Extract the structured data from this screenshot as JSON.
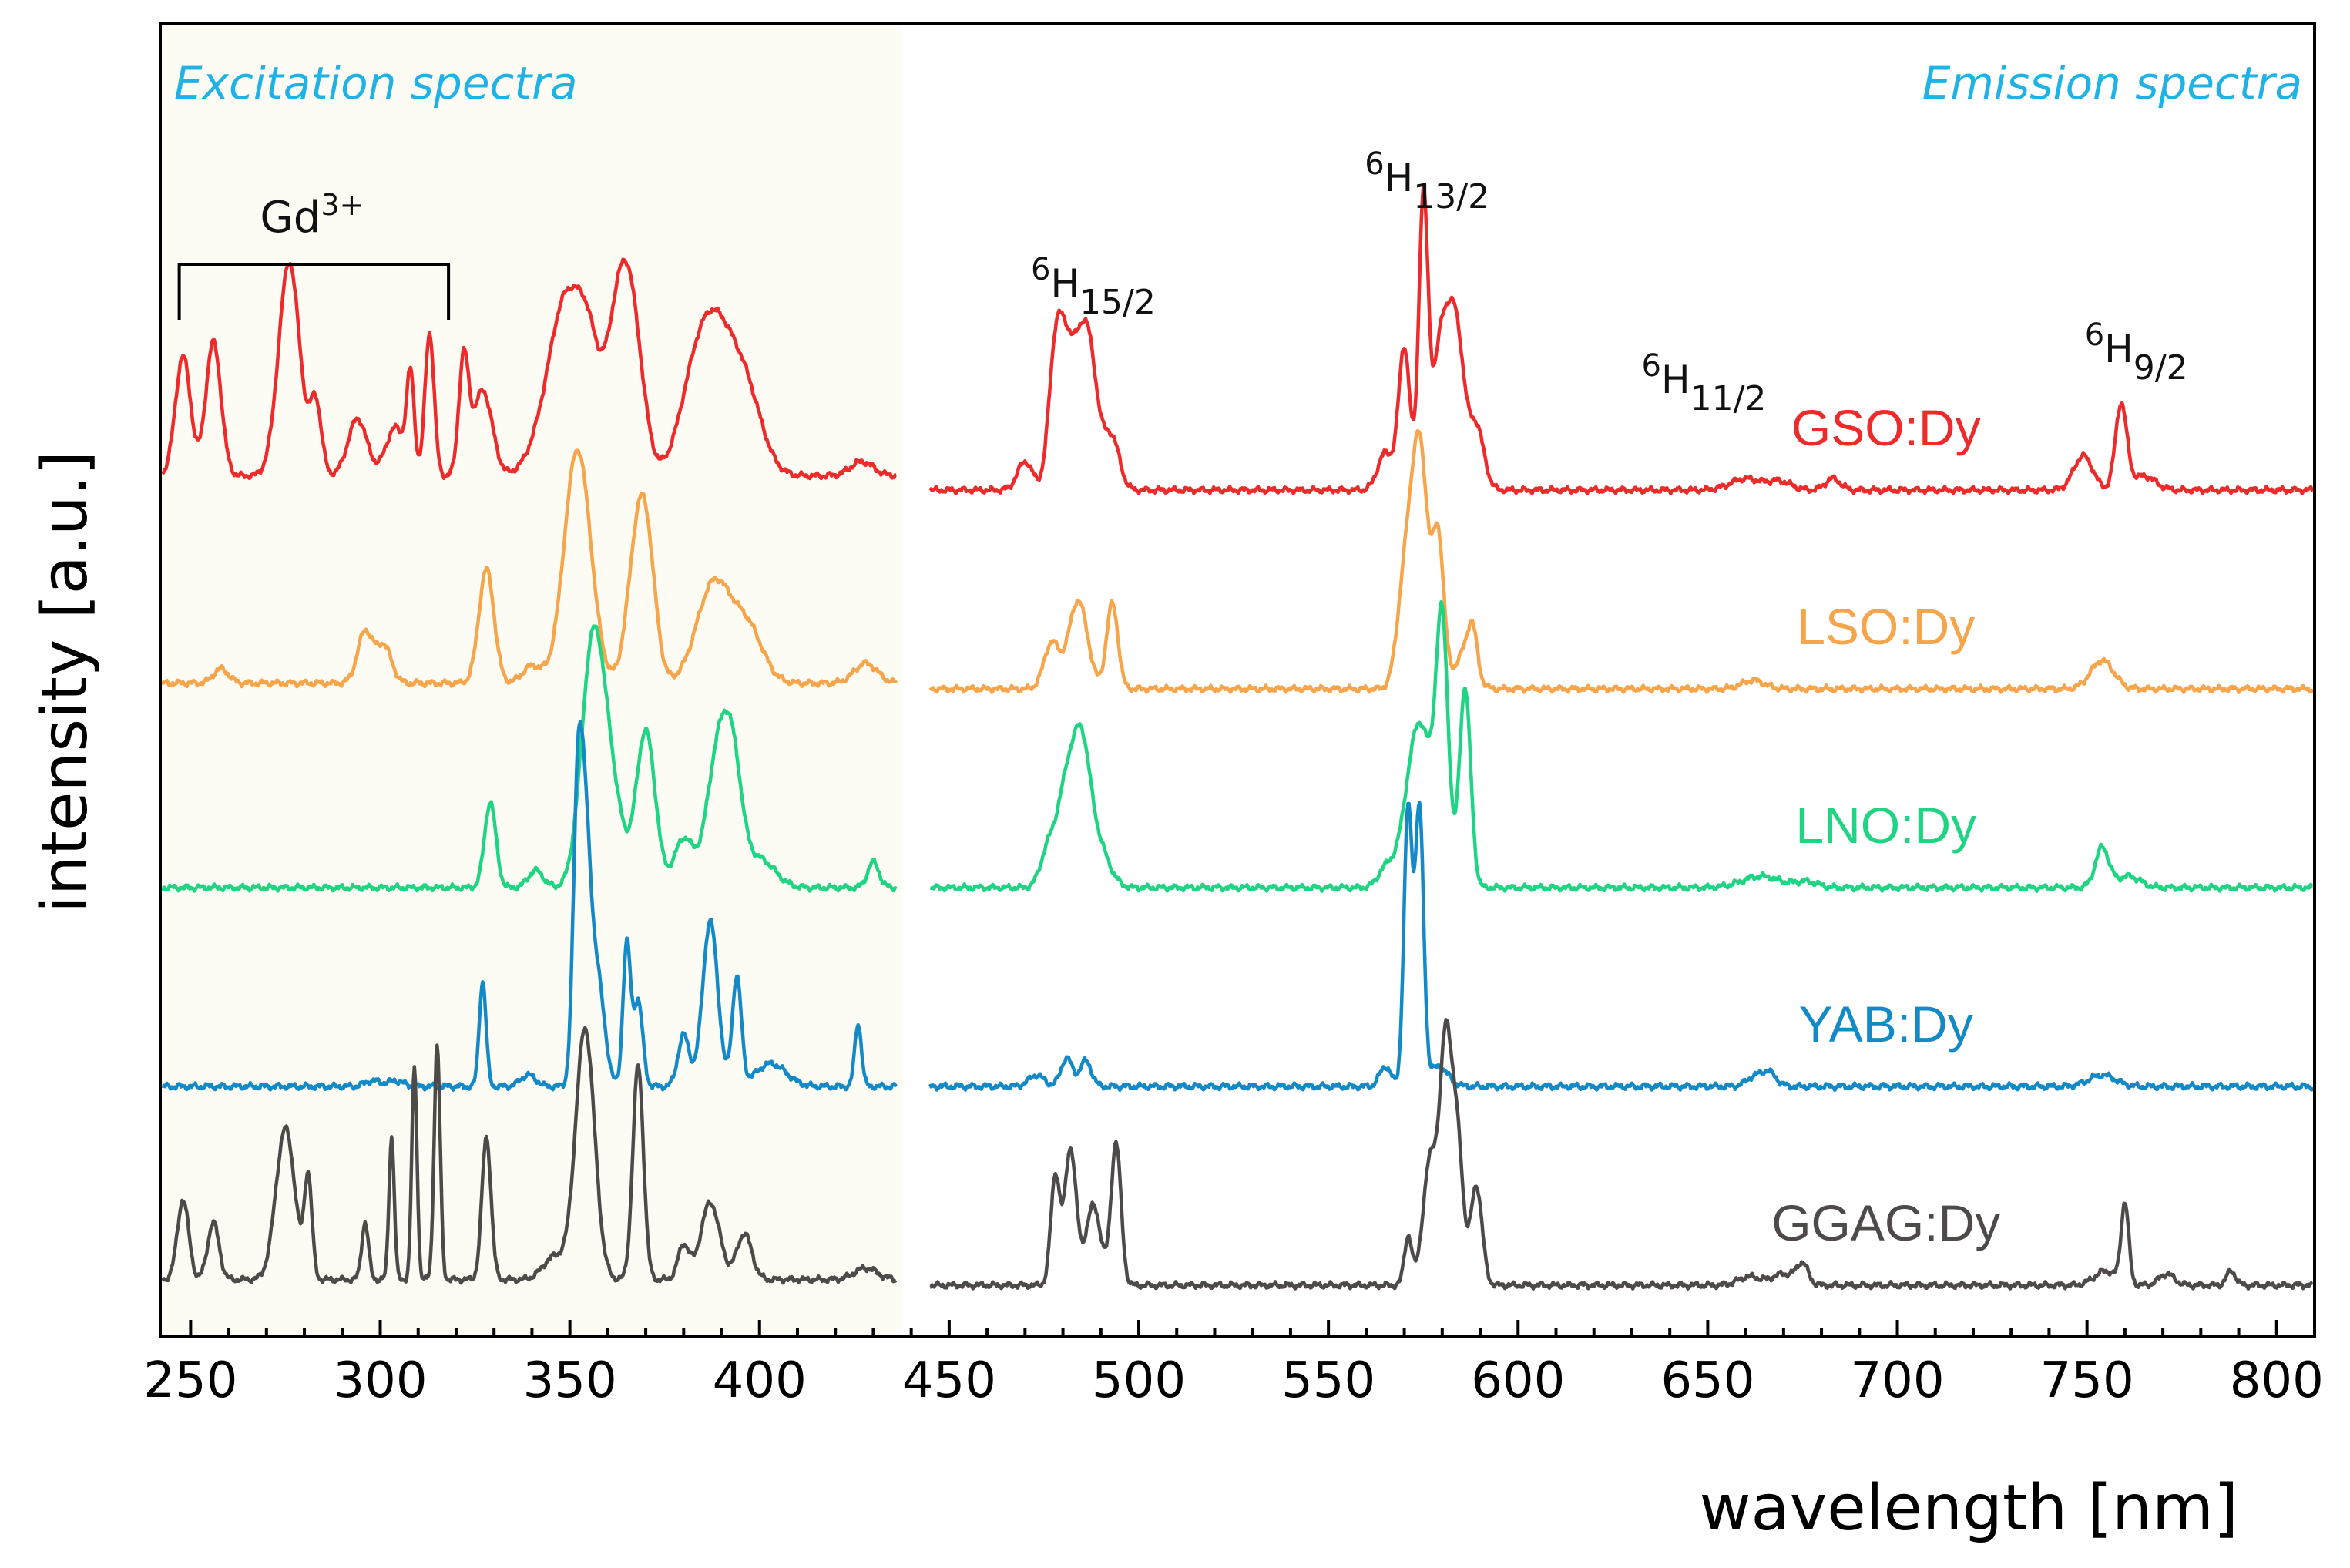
{
  "chart_data": {
    "type": "line",
    "title": "",
    "xlabel": "wavelength [nm]",
    "ylabel": "intensity [a.u.]",
    "xlim": [
      242,
      810
    ],
    "x_ticks": [
      250,
      300,
      350,
      400,
      450,
      500,
      550,
      600,
      650,
      700,
      750,
      800
    ],
    "x_tick_labels": [
      "250",
      "300",
      "350",
      "400",
      "450",
      "500",
      "550",
      "600",
      "650",
      "700",
      "750",
      "800"
    ],
    "y_ticks_shown": false,
    "panels": {
      "excitation": {
        "label": "Excitation spectra",
        "range": [
          242,
          436
        ],
        "shaded_color": "#fdfcf4"
      },
      "emission": {
        "label": "Emission spectra",
        "range": [
          445,
          810
        ]
      }
    },
    "annotations": {
      "gd_bracket": {
        "label": "Gd",
        "superscript": "3+",
        "from": 247,
        "to": 318
      },
      "transitions": [
        {
          "sup": "6",
          "main": "H",
          "sub": "15/2",
          "x": 488
        },
        {
          "sup": "6",
          "main": "H",
          "sub": "13/2",
          "x": 576
        },
        {
          "sup": "6",
          "main": "H",
          "sub": "11/2",
          "x": 649
        },
        {
          "sup": "6",
          "main": "H",
          "sub": "9/2",
          "x": 763
        }
      ]
    },
    "series": [
      {
        "name": "GSO:Dy",
        "color": "#ee2a2a",
        "offset": 4,
        "label_x": 697,
        "excitation": {
          "baseline": 0.05,
          "peaks": [
            [
              248,
              0.42,
              2.0
            ],
            [
              256,
              0.47,
              2.0
            ],
            [
              276,
              0.75,
              2.8
            ],
            [
              283,
              0.25,
              1.5
            ],
            [
              294,
              0.2,
              2.5
            ],
            [
              304,
              0.17,
              2.5
            ],
            [
              308,
              0.33,
              1.0
            ],
            [
              313,
              0.5,
              1.2
            ],
            [
              322,
              0.4,
              1.3
            ],
            [
              327,
              0.3,
              2.5
            ],
            [
              343,
              0.12,
              4
            ],
            [
              349,
              0.56,
              4.0
            ],
            [
              355,
              0.37,
              3.0
            ],
            [
              362,
              0.37,
              3.0
            ],
            [
              366,
              0.55,
              3.2
            ],
            [
              382,
              0.22,
              4
            ],
            [
              388,
              0.45,
              4.5
            ],
            [
              396,
              0.3,
              4.5
            ],
            [
              427,
              0.05,
              3
            ]
          ]
        },
        "emission": {
          "baseline": 0.0,
          "peaks": [
            [
              470,
              0.1,
              2
            ],
            [
              478,
              0.45,
              1.8
            ],
            [
              481,
              0.35,
              2
            ],
            [
              486,
              0.58,
              2.8
            ],
            [
              493,
              0.17,
              2
            ],
            [
              565,
              0.13,
              2
            ],
            [
              570,
              0.5,
              1.5
            ],
            [
              575,
              0.98,
              1.2
            ],
            [
              580,
              0.55,
              2.5
            ],
            [
              584,
              0.44,
              2
            ],
            [
              589,
              0.22,
              2
            ],
            [
              660,
              0.04,
              4
            ],
            [
              669,
              0.03,
              3
            ],
            [
              683,
              0.04,
              2
            ],
            [
              749,
              0.12,
              2.5
            ],
            [
              759,
              0.3,
              1.5
            ],
            [
              765,
              0.05,
              3
            ]
          ]
        }
      },
      {
        "name": "LSO:Dy",
        "color": "#f6a54a",
        "offset": 3,
        "label_x": 697,
        "excitation": {
          "baseline": 0.02,
          "peaks": [
            [
              258,
              0.05,
              2
            ],
            [
              296,
              0.18,
              2
            ],
            [
              301,
              0.13,
              2
            ],
            [
              328,
              0.4,
              2
            ],
            [
              340,
              0.06,
              2.5
            ],
            [
              352,
              0.82,
              3.5
            ],
            [
              367,
              0.3,
              2.5
            ],
            [
              370,
              0.48,
              2.5
            ],
            [
              388,
              0.35,
              4.5
            ],
            [
              397,
              0.18,
              4
            ],
            [
              428,
              0.07,
              3
            ]
          ]
        },
        "emission": {
          "baseline": 0.0,
          "peaks": [
            [
              477,
              0.16,
              2
            ],
            [
              484,
              0.31,
              2.5
            ],
            [
              493,
              0.3,
              1.5
            ],
            [
              570,
              0.33,
              2
            ],
            [
              574,
              0.85,
              2.2
            ],
            [
              579,
              0.5,
              1.5
            ],
            [
              586,
              0.13,
              2.5
            ],
            [
              588,
              0.14,
              1.2
            ],
            [
              662,
              0.03,
              3
            ],
            [
              754,
              0.1,
              3
            ]
          ]
        }
      },
      {
        "name": "LNO:Dy",
        "color": "#1fd583",
        "offset": 2,
        "label_x": 697,
        "excitation": {
          "baseline": 0.0,
          "peaks": [
            [
              329,
              0.3,
              1.5
            ],
            [
              341,
              0.06,
              2
            ],
            [
              356,
              0.83,
              3.0
            ],
            [
              361,
              0.3,
              3
            ],
            [
              370,
              0.55,
              2.5
            ],
            [
              380,
              0.17,
              2.5
            ],
            [
              389,
              0.45,
              3.0
            ],
            [
              393,
              0.35,
              2.5
            ],
            [
              400,
              0.1,
              4
            ],
            [
              430,
              0.09,
              1.5
            ]
          ]
        },
        "emission": {
          "baseline": 0.0,
          "peaks": [
            [
              476,
              0.12,
              2
            ],
            [
              481,
              0.35,
              2.5
            ],
            [
              485,
              0.4,
              2.2
            ],
            [
              489,
              0.15,
              3
            ],
            [
              565,
              0.06,
              2
            ],
            [
              574,
              0.58,
              3.5
            ],
            [
              580,
              0.85,
              1.6
            ],
            [
              586,
              0.7,
              1.5
            ],
            [
              664,
              0.04,
              5
            ],
            [
              676,
              0.02,
              3
            ],
            [
              754,
              0.14,
              1.8
            ],
            [
              761,
              0.04,
              3
            ]
          ]
        }
      },
      {
        "name": "YAB:Dy",
        "color": "#1489c8",
        "offset": 1,
        "label_x": 697,
        "excitation": {
          "baseline": 0.0,
          "peaks": [
            [
              298,
              0.02,
              2
            ],
            [
              304,
              0.02,
              2
            ],
            [
              327,
              0.37,
              0.9
            ],
            [
              339,
              0.04,
              2
            ],
            [
              352,
              0.9,
              1.2
            ],
            [
              354,
              0.75,
              1.4
            ],
            [
              357,
              0.4,
              2
            ],
            [
              365,
              0.5,
              1.0
            ],
            [
              368,
              0.3,
              1.2
            ],
            [
              380,
              0.18,
              1.5
            ],
            [
              387,
              0.58,
              2.0
            ],
            [
              394,
              0.38,
              1.2
            ],
            [
              403,
              0.08,
              4
            ],
            [
              426,
              0.22,
              0.9
            ]
          ]
        },
        "emission": {
          "baseline": 0.0,
          "peaks": [
            [
              473,
              0.04,
              2
            ],
            [
              481,
              0.1,
              1.5
            ],
            [
              486,
              0.09,
              1.5
            ],
            [
              565,
              0.07,
              1.5
            ],
            [
              571,
              0.97,
              1.1
            ],
            [
              574,
              0.96,
              1.1
            ],
            [
              579,
              0.07,
              2.5
            ],
            [
              662,
              0.03,
              2
            ],
            [
              666,
              0.05,
              2
            ],
            [
              754,
              0.04,
              3.5
            ]
          ]
        }
      },
      {
        "name": "GGAG:Dy",
        "color": "#4f4a4a",
        "offset": 0,
        "label_x": 697,
        "excitation": {
          "baseline": 0.02,
          "peaks": [
            [
              248,
              0.28,
              1.5
            ],
            [
              256,
              0.2,
              1.5
            ],
            [
              275,
              0.53,
              2.5
            ],
            [
              281,
              0.35,
              1.0
            ],
            [
              296,
              0.2,
              0.9
            ],
            [
              303,
              0.5,
              0.7
            ],
            [
              309,
              0.74,
              0.7
            ],
            [
              315,
              0.82,
              0.8
            ],
            [
              328,
              0.5,
              1.2
            ],
            [
              346,
              0.08,
              3
            ],
            [
              354,
              0.88,
              2.5
            ],
            [
              368,
              0.75,
              1.4
            ],
            [
              380,
              0.12,
              1.5
            ],
            [
              387,
              0.27,
              2.5
            ],
            [
              396,
              0.16,
              2
            ],
            [
              428,
              0.04,
              3
            ]
          ]
        },
        "emission": {
          "baseline": 0.0,
          "peaks": [
            [
              478,
              0.38,
              1.2
            ],
            [
              482,
              0.48,
              1.5
            ],
            [
              488,
              0.28,
              2
            ],
            [
              494,
              0.5,
              1.3
            ],
            [
              571,
              0.17,
              1
            ],
            [
              577,
              0.45,
              2
            ],
            [
              581,
              0.8,
              1.5
            ],
            [
              584,
              0.5,
              1.5
            ],
            [
              589,
              0.35,
              1.5
            ],
            [
              661,
              0.03,
              3
            ],
            [
              670,
              0.04,
              3
            ],
            [
              675,
              0.07,
              1.5
            ],
            [
              755,
              0.05,
              3
            ],
            [
              760,
              0.28,
              1.0
            ],
            [
              771,
              0.04,
              2
            ],
            [
              788,
              0.05,
              1.2
            ]
          ]
        }
      }
    ]
  }
}
